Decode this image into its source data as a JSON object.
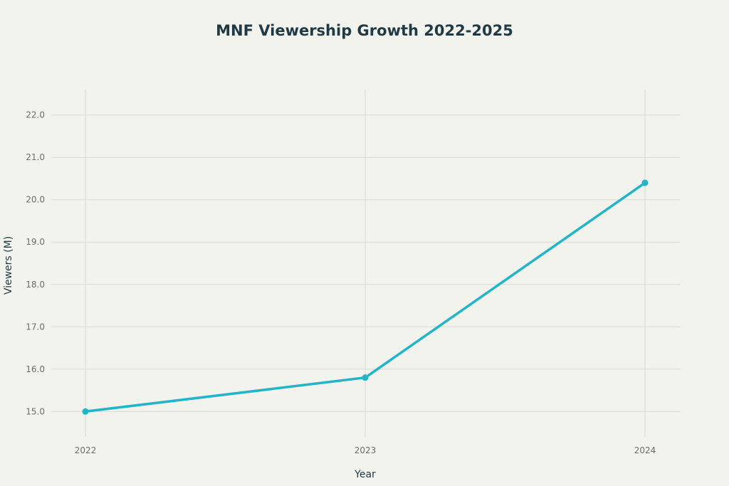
{
  "chart_data": {
    "type": "line",
    "title": "MNF Viewership Growth 2022-2025",
    "xlabel": "Year",
    "ylabel": "Viewers (M)",
    "x": [
      "2022",
      "2023",
      "2024"
    ],
    "series": [
      {
        "values": [
          15.0,
          15.8,
          20.4
        ],
        "color": "#22b5c9"
      }
    ],
    "y_ticks": [
      "15.0",
      "16.0",
      "17.0",
      "18.0",
      "19.0",
      "20.0",
      "21.0",
      "22.0"
    ],
    "ylim": [
      14.4,
      22.6
    ],
    "grid": true,
    "legend": "none"
  }
}
